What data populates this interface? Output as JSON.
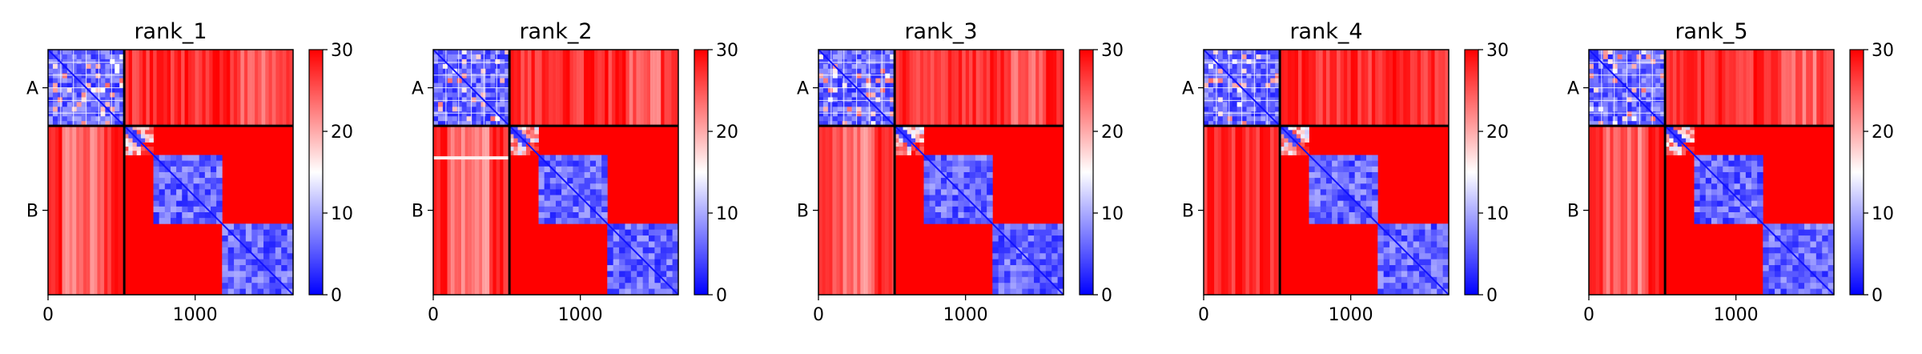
{
  "chart_data": [
    {
      "type": "heatmap",
      "title": "rank_1",
      "x_ticks": [
        0,
        1000
      ],
      "x_tick_labels": [
        "0",
        "1000"
      ],
      "y_tick_labels": [
        "A",
        "B"
      ],
      "xlim": [
        0,
        1666
      ],
      "ylim": [
        1666,
        0
      ],
      "chain_boundaries": [
        0,
        518,
        1666
      ],
      "chains": [
        "A",
        "B"
      ],
      "domains": [
        [
          0,
          518
        ],
        [
          518,
          716
        ],
        [
          716,
          1183
        ],
        [
          1183,
          1666
        ]
      ],
      "colorbar": {
        "vmin": 0,
        "vmax": 30,
        "ticks": [
          0,
          10,
          20,
          30
        ],
        "tick_labels": [
          "0",
          "10",
          "20",
          "30"
        ],
        "cmap": "bwr"
      },
      "offdiag_level": 30,
      "cross_chain_pale_band": true,
      "ab_bleed_band": false
    },
    {
      "type": "heatmap",
      "title": "rank_2",
      "x_ticks": [
        0,
        1000
      ],
      "x_tick_labels": [
        "0",
        "1000"
      ],
      "y_tick_labels": [
        "A",
        "B"
      ],
      "xlim": [
        0,
        1666
      ],
      "ylim": [
        1666,
        0
      ],
      "chain_boundaries": [
        0,
        518,
        1666
      ],
      "chains": [
        "A",
        "B"
      ],
      "domains": [
        [
          0,
          518
        ],
        [
          518,
          716
        ],
        [
          716,
          1183
        ],
        [
          1183,
          1666
        ]
      ],
      "colorbar": {
        "vmin": 0,
        "vmax": 30,
        "ticks": [
          0,
          10,
          20,
          30
        ],
        "tick_labels": [
          "0",
          "10",
          "20",
          "30"
        ],
        "cmap": "bwr"
      },
      "offdiag_level": 30,
      "cross_chain_pale_band": true,
      "ab_bleed_band": true
    },
    {
      "type": "heatmap",
      "title": "rank_3",
      "x_ticks": [
        0,
        1000
      ],
      "x_tick_labels": [
        "0",
        "1000"
      ],
      "y_tick_labels": [
        "A",
        "B"
      ],
      "xlim": [
        0,
        1666
      ],
      "ylim": [
        1666,
        0
      ],
      "chain_boundaries": [
        0,
        518,
        1666
      ],
      "chains": [
        "A",
        "B"
      ],
      "domains": [
        [
          0,
          518
        ],
        [
          518,
          716
        ],
        [
          716,
          1183
        ],
        [
          1183,
          1666
        ]
      ],
      "colorbar": {
        "vmin": 0,
        "vmax": 30,
        "ticks": [
          0,
          10,
          20,
          30
        ],
        "tick_labels": [
          "0",
          "10",
          "20",
          "30"
        ],
        "cmap": "bwr"
      },
      "offdiag_level": 30,
      "cross_chain_pale_band": true,
      "ab_bleed_band": false
    },
    {
      "type": "heatmap",
      "title": "rank_4",
      "x_ticks": [
        0,
        1000
      ],
      "x_tick_labels": [
        "0",
        "1000"
      ],
      "y_tick_labels": [
        "A",
        "B"
      ],
      "xlim": [
        0,
        1666
      ],
      "ylim": [
        1666,
        0
      ],
      "chain_boundaries": [
        0,
        518,
        1666
      ],
      "chains": [
        "A",
        "B"
      ],
      "domains": [
        [
          0,
          518
        ],
        [
          518,
          716
        ],
        [
          716,
          1183
        ],
        [
          1183,
          1666
        ]
      ],
      "colorbar": {
        "vmin": 0,
        "vmax": 30,
        "ticks": [
          0,
          10,
          20,
          30
        ],
        "tick_labels": [
          "0",
          "10",
          "20",
          "30"
        ],
        "cmap": "bwr"
      },
      "offdiag_level": 30,
      "cross_chain_pale_band": false,
      "ab_bleed_band": false
    },
    {
      "type": "heatmap",
      "title": "rank_5",
      "x_ticks": [
        0,
        1000
      ],
      "x_tick_labels": [
        "0",
        "1000"
      ],
      "y_tick_labels": [
        "A",
        "B"
      ],
      "xlim": [
        0,
        1666
      ],
      "ylim": [
        1666,
        0
      ],
      "chain_boundaries": [
        0,
        518,
        1666
      ],
      "chains": [
        "A",
        "B"
      ],
      "domains": [
        [
          0,
          518
        ],
        [
          518,
          716
        ],
        [
          716,
          1183
        ],
        [
          1183,
          1666
        ]
      ],
      "colorbar": {
        "vmin": 0,
        "vmax": 30,
        "ticks": [
          0,
          10,
          20,
          30
        ],
        "tick_labels": [
          "0",
          "10",
          "20",
          "30"
        ],
        "cmap": "bwr"
      },
      "offdiag_level": 30,
      "cross_chain_pale_band": true,
      "ab_bleed_band": false
    }
  ],
  "colors": {
    "low": "#0000ff",
    "mid": "#ffffff",
    "high": "#ff0000",
    "divider": "#000000"
  }
}
